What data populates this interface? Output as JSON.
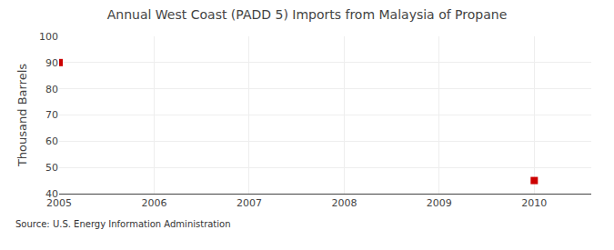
{
  "chart_data": {
    "type": "scatter",
    "title": "Annual West Coast (PADD 5) Imports from Malaysia of Propane",
    "ylabel": "Thousand Barrels",
    "annotations": [
      "Source: U.S. Energy Information Administration"
    ],
    "x": [
      2005,
      2010
    ],
    "values": [
      90,
      45
    ],
    "color": "#cc0000",
    "marker": "square",
    "xlim": [
      2005,
      2010.6
    ],
    "ylim": [
      40,
      100
    ],
    "xticks": [
      2005,
      2006,
      2007,
      2008,
      2009,
      2010
    ],
    "yticks": [
      40,
      50,
      60,
      70,
      80,
      90,
      100
    ],
    "grid": true
  }
}
